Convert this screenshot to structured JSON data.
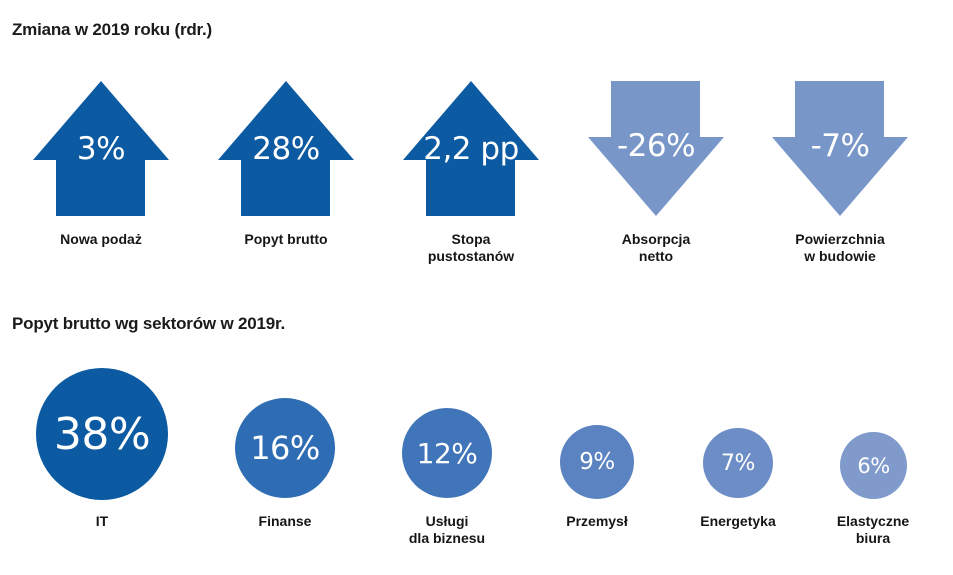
{
  "section1": {
    "title": "Zmiana w 2019 roku (rdr.)",
    "items": [
      {
        "value": "3%",
        "label": "Nowa podaż",
        "direction": "up"
      },
      {
        "value": "28%",
        "label": "Popyt brutto",
        "direction": "up"
      },
      {
        "value": "2,2 pp",
        "label": "Stopa\npustostanów",
        "direction": "up"
      },
      {
        "value": "-26%",
        "label": "Absorpcja\nnetto",
        "direction": "down"
      },
      {
        "value": "-7%",
        "label": "Powierzchnia\nw budowie",
        "direction": "down"
      }
    ]
  },
  "section2": {
    "title": "Popyt brutto wg sektorów w 2019r.",
    "items": [
      {
        "value": "38%",
        "label": "IT"
      },
      {
        "value": "16%",
        "label": "Finanse"
      },
      {
        "value": "12%",
        "label": "Usługi\ndla biznesu"
      },
      {
        "value": "9%",
        "label": "Przemysł"
      },
      {
        "value": "7%",
        "label": "Energetyka"
      },
      {
        "value": "6%",
        "label": "Elastyczne\nbiura"
      }
    ]
  },
  "colors": {
    "up_arrow": "#0b5aa2",
    "down_arrow": "#7896c8",
    "bubbles": [
      "#0b5aa2",
      "#2e6db3",
      "#4175b9",
      "#5b82c1",
      "#6d8dc6",
      "#7f9acb"
    ]
  }
}
